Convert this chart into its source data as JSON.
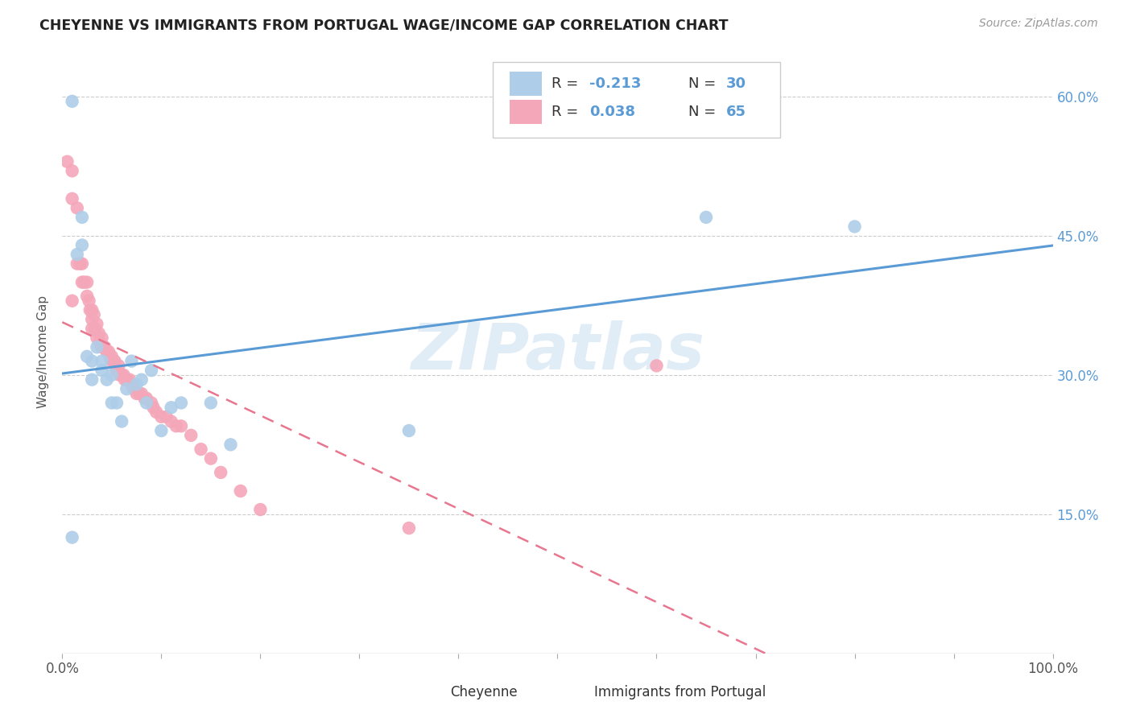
{
  "title": "CHEYENNE VS IMMIGRANTS FROM PORTUGAL WAGE/INCOME GAP CORRELATION CHART",
  "source": "Source: ZipAtlas.com",
  "ylabel": "Wage/Income Gap",
  "yticks": [
    "15.0%",
    "30.0%",
    "45.0%",
    "60.0%"
  ],
  "ytick_vals": [
    0.15,
    0.3,
    0.45,
    0.6
  ],
  "xlim": [
    0.0,
    1.0
  ],
  "ylim": [
    0.0,
    0.65
  ],
  "legend_r1": "-0.213",
  "legend_n1": "30",
  "legend_r2": "0.038",
  "legend_n2": "65",
  "watermark": "ZIPatlas",
  "blue_color": "#aecde8",
  "pink_color": "#f4a7b9",
  "blue_line_color": "#5b9bd5",
  "pink_line_color": "#e8768e",
  "blue_r": -0.213,
  "pink_r": 0.038,
  "cheyenne_x": [
    0.01,
    0.01,
    0.015,
    0.02,
    0.02,
    0.025,
    0.03,
    0.03,
    0.035,
    0.04,
    0.04,
    0.045,
    0.05,
    0.05,
    0.055,
    0.06,
    0.065,
    0.07,
    0.075,
    0.08,
    0.085,
    0.09,
    0.1,
    0.11,
    0.12,
    0.15,
    0.17,
    0.35,
    0.65,
    0.8
  ],
  "cheyenne_y": [
    0.595,
    0.125,
    0.43,
    0.44,
    0.47,
    0.32,
    0.315,
    0.295,
    0.33,
    0.315,
    0.305,
    0.295,
    0.3,
    0.27,
    0.27,
    0.25,
    0.285,
    0.315,
    0.29,
    0.295,
    0.27,
    0.305,
    0.24,
    0.265,
    0.27,
    0.27,
    0.225,
    0.24,
    0.47,
    0.46
  ],
  "portugal_x": [
    0.005,
    0.01,
    0.01,
    0.01,
    0.015,
    0.015,
    0.018,
    0.02,
    0.02,
    0.022,
    0.025,
    0.025,
    0.027,
    0.028,
    0.03,
    0.03,
    0.03,
    0.032,
    0.033,
    0.035,
    0.035,
    0.037,
    0.038,
    0.04,
    0.04,
    0.042,
    0.043,
    0.045,
    0.047,
    0.048,
    0.05,
    0.05,
    0.052,
    0.053,
    0.055,
    0.057,
    0.058,
    0.06,
    0.062,
    0.063,
    0.065,
    0.068,
    0.07,
    0.072,
    0.075,
    0.078,
    0.08,
    0.083,
    0.085,
    0.09,
    0.092,
    0.095,
    0.1,
    0.105,
    0.11,
    0.115,
    0.12,
    0.13,
    0.14,
    0.15,
    0.16,
    0.18,
    0.2,
    0.35,
    0.6
  ],
  "portugal_y": [
    0.53,
    0.52,
    0.49,
    0.38,
    0.48,
    0.42,
    0.42,
    0.42,
    0.4,
    0.4,
    0.4,
    0.385,
    0.38,
    0.37,
    0.37,
    0.36,
    0.35,
    0.365,
    0.35,
    0.355,
    0.34,
    0.345,
    0.335,
    0.34,
    0.33,
    0.33,
    0.33,
    0.325,
    0.325,
    0.32,
    0.32,
    0.315,
    0.315,
    0.315,
    0.305,
    0.31,
    0.3,
    0.3,
    0.3,
    0.295,
    0.295,
    0.295,
    0.29,
    0.285,
    0.28,
    0.28,
    0.28,
    0.275,
    0.275,
    0.27,
    0.265,
    0.26,
    0.255,
    0.255,
    0.25,
    0.245,
    0.245,
    0.235,
    0.22,
    0.21,
    0.195,
    0.175,
    0.155,
    0.135,
    0.31
  ]
}
